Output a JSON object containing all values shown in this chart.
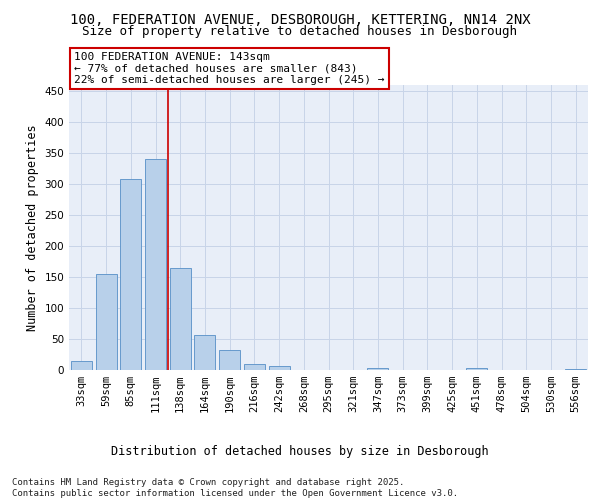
{
  "title1": "100, FEDERATION AVENUE, DESBOROUGH, KETTERING, NN14 2NX",
  "title2": "Size of property relative to detached houses in Desborough",
  "xlabel": "Distribution of detached houses by size in Desborough",
  "ylabel": "Number of detached properties",
  "categories": [
    "33sqm",
    "59sqm",
    "85sqm",
    "111sqm",
    "138sqm",
    "164sqm",
    "190sqm",
    "216sqm",
    "242sqm",
    "268sqm",
    "295sqm",
    "321sqm",
    "347sqm",
    "373sqm",
    "399sqm",
    "425sqm",
    "451sqm",
    "478sqm",
    "504sqm",
    "530sqm",
    "556sqm"
  ],
  "values": [
    15,
    155,
    308,
    340,
    165,
    57,
    33,
    10,
    6,
    0,
    0,
    0,
    4,
    0,
    0,
    0,
    3,
    0,
    0,
    0,
    2
  ],
  "bar_color": "#b8d0ea",
  "bar_edge_color": "#6699cc",
  "grid_color": "#c8d4e8",
  "background_color": "#e8eef8",
  "vline_x": 3.5,
  "vline_color": "#cc0000",
  "annotation_line1": "100 FEDERATION AVENUE: 143sqm",
  "annotation_line2": "← 77% of detached houses are smaller (843)",
  "annotation_line3": "22% of semi-detached houses are larger (245) →",
  "annotation_box_color": "#ffffff",
  "annotation_box_edge": "#cc0000",
  "ylim": [
    0,
    460
  ],
  "yticks": [
    0,
    50,
    100,
    150,
    200,
    250,
    300,
    350,
    400,
    450
  ],
  "footer": "Contains HM Land Registry data © Crown copyright and database right 2025.\nContains public sector information licensed under the Open Government Licence v3.0.",
  "title_fontsize": 10,
  "subtitle_fontsize": 9,
  "axis_label_fontsize": 8.5,
  "tick_fontsize": 7.5,
  "footer_fontsize": 6.5,
  "annotation_fontsize": 8
}
